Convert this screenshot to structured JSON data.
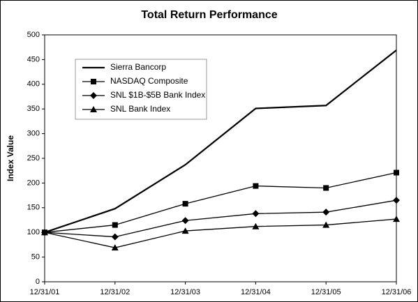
{
  "chart_data": {
    "type": "line",
    "title": "Total Return Performance",
    "y_label": "Index Value",
    "categories": [
      "12/31/01",
      "12/31/02",
      "12/31/03",
      "12/31/04",
      "12/31/05",
      "12/31/06"
    ],
    "series": [
      {
        "name": "Sierra Bancorp",
        "color": "#000000",
        "marker": "none",
        "values": [
          100,
          148,
          237,
          351,
          357,
          469
        ]
      },
      {
        "name": "NASDAQ Composite",
        "color": "#000000",
        "marker": "square",
        "values": [
          100,
          115,
          158,
          194,
          190,
          221
        ]
      },
      {
        "name": "SNL $1B-$5B Bank Index",
        "color": "#000000",
        "marker": "diamond",
        "values": [
          100,
          91,
          124,
          138,
          141,
          165
        ]
      },
      {
        "name": "SNL Bank Index",
        "color": "#000000",
        "marker": "triangle",
        "values": [
          100,
          69,
          103,
          112,
          115,
          127
        ]
      }
    ],
    "ylim": [
      0,
      500
    ],
    "yticks": [
      0,
      50,
      100,
      150,
      200,
      250,
      300,
      350,
      400,
      450,
      500
    ],
    "legend_loc": "upper left"
  }
}
